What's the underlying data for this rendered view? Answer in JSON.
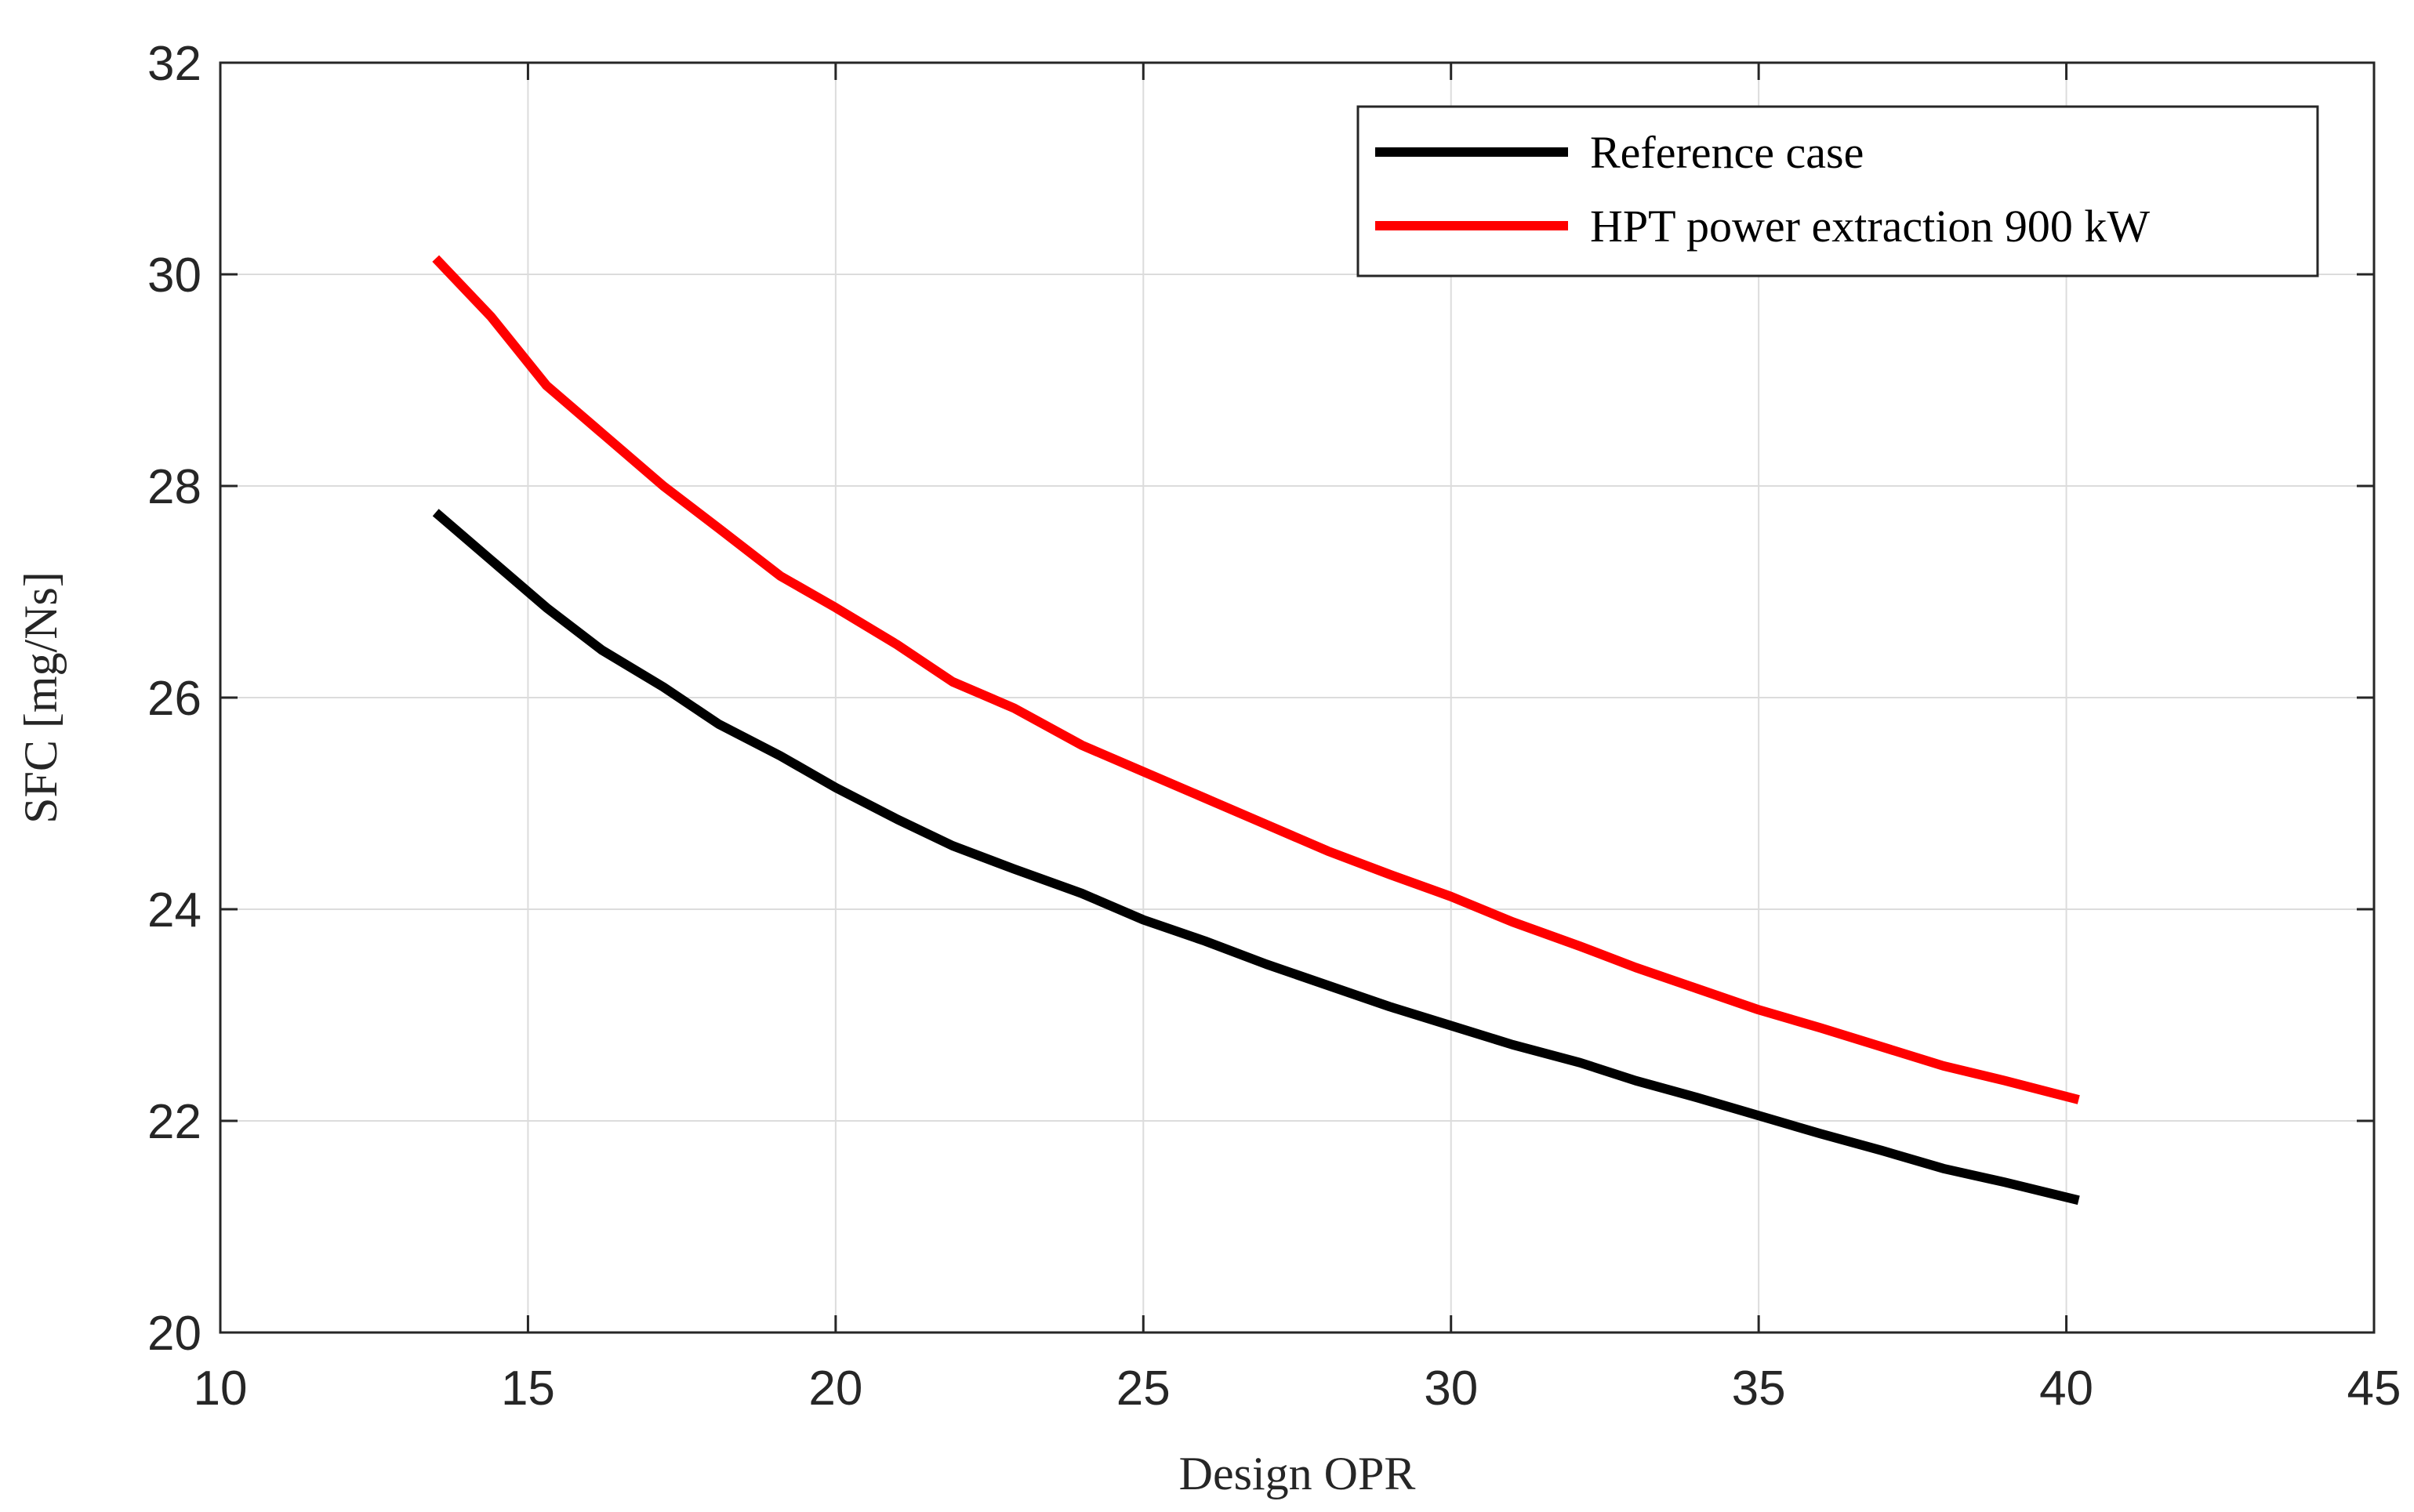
{
  "chart_data": {
    "type": "line",
    "title": "",
    "xlabel": "Design OPR",
    "ylabel": "SFC [mg/Ns]",
    "xlim": [
      10,
      45
    ],
    "ylim": [
      20,
      32
    ],
    "xticks": [
      10,
      15,
      20,
      25,
      30,
      35,
      40,
      45
    ],
    "yticks": [
      20,
      22,
      24,
      26,
      28,
      30,
      32
    ],
    "grid": true,
    "legend_position": "top-right",
    "series": [
      {
        "name": "Reference case",
        "color": "#000000",
        "x": [
          13.5,
          14.4,
          15.3,
          16.2,
          17.2,
          18.1,
          19.1,
          20.0,
          21.0,
          21.9,
          22.9,
          24.0,
          25.0,
          26.0,
          27.0,
          28.0,
          29.0,
          30.0,
          31.0,
          32.1,
          33.0,
          34.0,
          35.0,
          36.0,
          37.0,
          38.0,
          39.0,
          40.2
        ],
        "y": [
          27.75,
          27.3,
          26.85,
          26.45,
          26.1,
          25.75,
          25.45,
          25.15,
          24.85,
          24.6,
          24.38,
          24.15,
          23.9,
          23.7,
          23.48,
          23.28,
          23.08,
          22.9,
          22.72,
          22.55,
          22.38,
          22.22,
          22.05,
          21.88,
          21.72,
          21.55,
          21.42,
          21.25
        ]
      },
      {
        "name": "HPT power extraction 900 kW",
        "color": "#ff0000",
        "x": [
          13.5,
          14.4,
          15.3,
          16.2,
          17.2,
          18.1,
          19.1,
          20.0,
          21.0,
          21.9,
          22.9,
          24.0,
          25.0,
          26.0,
          27.0,
          28.0,
          29.0,
          30.0,
          31.0,
          32.1,
          33.0,
          34.0,
          35.0,
          36.0,
          37.0,
          38.0,
          39.0,
          40.2
        ],
        "y": [
          30.15,
          29.6,
          28.95,
          28.5,
          28.0,
          27.6,
          27.15,
          26.85,
          26.5,
          26.15,
          25.9,
          25.55,
          25.3,
          25.05,
          24.8,
          24.55,
          24.33,
          24.12,
          23.88,
          23.65,
          23.45,
          23.25,
          23.05,
          22.88,
          22.7,
          22.52,
          22.38,
          22.2
        ]
      }
    ]
  }
}
